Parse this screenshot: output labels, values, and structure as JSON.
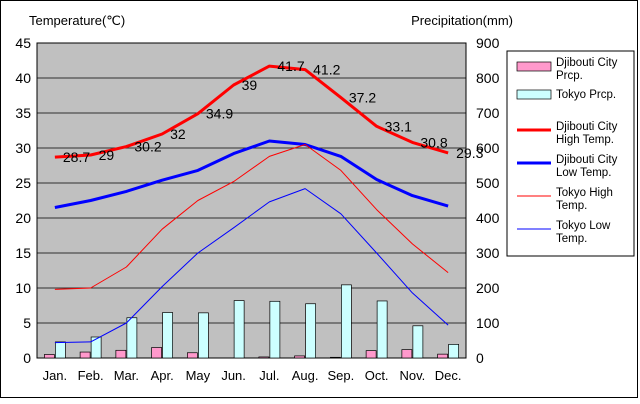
{
  "chart_data": {
    "type": "bar+line",
    "left_axis_title": "Temperature(℃)",
    "right_axis_title": "Precipitation(mm)",
    "categories": [
      "Jan.",
      "Feb.",
      "Mar.",
      "Apr.",
      "May",
      "Jun.",
      "Jul.",
      "Aug.",
      "Sep.",
      "Oct.",
      "Nov.",
      "Dec."
    ],
    "left_ticks": [
      "0",
      "5",
      "10",
      "15",
      "20",
      "25",
      "30",
      "35",
      "40",
      "45"
    ],
    "right_ticks": [
      "0",
      "100",
      "200",
      "300",
      "400",
      "500",
      "600",
      "700",
      "800",
      "900"
    ],
    "left_range": [
      0,
      45
    ],
    "right_range": [
      0,
      900
    ],
    "grid": true,
    "legend_position": "right",
    "plot_background": "#c0c0c0",
    "bar_series": [
      {
        "name": "Djibouti City Prcp.",
        "color": "#ff99cc",
        "values": [
          10,
          17,
          22,
          30,
          15,
          0,
          3,
          6,
          2,
          21,
          24,
          11
        ]
      },
      {
        "name": "Tokyo Prcp.",
        "color": "#ccffff",
        "values": [
          46,
          60,
          115,
          130,
          129,
          164,
          162,
          155,
          209,
          163,
          92,
          39
        ]
      }
    ],
    "line_series": [
      {
        "name": "Djibouti City High Temp.",
        "color": "#ff0000",
        "width": 3,
        "values": [
          28.7,
          29,
          30.2,
          32,
          34.9,
          39,
          41.7,
          41.2,
          37.2,
          33.1,
          30.8,
          29.3
        ],
        "labels": [
          "28.7",
          "29",
          "30.2",
          "32",
          "34.9",
          "39",
          "41.7",
          "41.2",
          "37.2",
          "33.1",
          "30.8",
          "29.3"
        ]
      },
      {
        "name": "Djibouti City Low Temp.",
        "color": "#0000ff",
        "width": 3,
        "values": [
          21.5,
          22.5,
          23.8,
          25.4,
          26.8,
          29.2,
          31,
          30.5,
          28.8,
          25.5,
          23.2,
          21.7
        ]
      },
      {
        "name": "Tokyo High Temp.",
        "color": "#ff0000",
        "width": 1,
        "values": [
          9.8,
          10,
          13,
          18.4,
          22.5,
          25.2,
          28.8,
          30.5,
          26.8,
          21.2,
          16.3,
          12.2
        ]
      },
      {
        "name": "Tokyo Low Temp.",
        "color": "#0000ff",
        "width": 1,
        "values": [
          2.2,
          2.3,
          5,
          10.2,
          15,
          18.6,
          22.3,
          24.2,
          20.6,
          15,
          9.3,
          4.7
        ]
      }
    ],
    "legend": [
      {
        "label": "Djibouti City Prcp.",
        "kind": "bar",
        "color": "#ff99cc"
      },
      {
        "label": "Tokyo Prcp.",
        "kind": "bar",
        "color": "#ccffff"
      },
      {
        "label": "Djibouti City High Temp.",
        "kind": "line",
        "color": "#ff0000",
        "width": 3
      },
      {
        "label": "Djibouti City Low Temp.",
        "kind": "line",
        "color": "#0000ff",
        "width": 3
      },
      {
        "label": "Tokyo High Temp.",
        "kind": "line",
        "color": "#ff0000",
        "width": 1
      },
      {
        "label": "Tokyo Low Temp.",
        "kind": "line",
        "color": "#0000ff",
        "width": 1
      }
    ]
  }
}
